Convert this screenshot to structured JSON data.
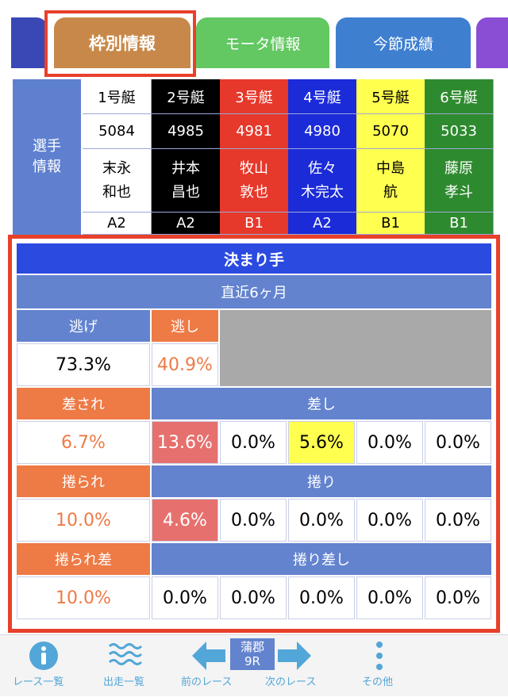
{
  "tabs": {
    "wakubetsu": "枠別情報",
    "motor": "モータ情報",
    "konsetsu": "今節成績"
  },
  "racer_info": {
    "side_label": "選手\n情報",
    "boats": [
      {
        "boat": "1号艇",
        "number": "5084",
        "name_line1": "末永",
        "name_line2": "和也",
        "class": "A2",
        "bg": "#ffffff",
        "fg": "#000000"
      },
      {
        "boat": "2号艇",
        "number": "4985",
        "name_line1": "井本",
        "name_line2": "昌也",
        "class": "A2",
        "bg": "#000000",
        "fg": "#ffffff"
      },
      {
        "boat": "3号艇",
        "number": "4981",
        "name_line1": "牧山",
        "name_line2": "敦也",
        "class": "B1",
        "bg": "#e6382b",
        "fg": "#ffffff"
      },
      {
        "boat": "4号艇",
        "number": "4980",
        "name_line1": "佐々",
        "name_line2": "木完太",
        "class": "A2",
        "bg": "#1b2bd8",
        "fg": "#ffffff"
      },
      {
        "boat": "5号艇",
        "number": "5070",
        "name_line1": "中島",
        "name_line2": "航",
        "class": "B1",
        "bg": "#ffff50",
        "fg": "#000000"
      },
      {
        "boat": "6号艇",
        "number": "5033",
        "name_line1": "藤原",
        "name_line2": "孝斗",
        "class": "B1",
        "bg": "#2e8a2e",
        "fg": "#ffffff"
      }
    ]
  },
  "kimarite": {
    "title": "決まり手",
    "period": "直近6ヶ月",
    "nige_label": "逃げ",
    "nigashi_label": "逃し",
    "nige_value": "73.3%",
    "nigashi_value": "40.9%",
    "sasare_label": "差され",
    "sashi_label": "差し",
    "sasare_value": "6.7%",
    "sashi_values": [
      "13.6%",
      "0.0%",
      "5.6%",
      "0.0%",
      "0.0%"
    ],
    "makurare_label": "捲られ",
    "makuri_label": "捲り",
    "makurare_value": "10.0%",
    "makuri_values": [
      "4.6%",
      "0.0%",
      "0.0%",
      "0.0%",
      "0.0%"
    ],
    "makurarezashi_label": "捲られ差",
    "makurizashi_label": "捲り差し",
    "makurarezashi_value": "10.0%",
    "makurizashi_values": [
      "0.0%",
      "0.0%",
      "0.0%",
      "0.0%",
      "0.0%"
    ]
  },
  "bottom_nav": {
    "race_list": "レース一覧",
    "entry_list": "出走一覧",
    "prev_race": "前のレース",
    "venue": "蒲郡",
    "race_no": "9R",
    "next_race": "次のレース",
    "other": "その他",
    "icons": [
      "info-icon",
      "waves-icon",
      "arrow-left-icon",
      "arrow-right-icon",
      "more-vertical-icon"
    ]
  }
}
